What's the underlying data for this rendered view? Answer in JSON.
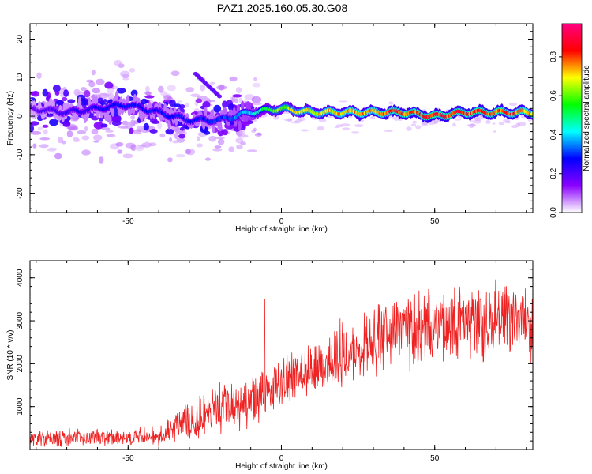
{
  "title": "PAZ1.2025.160.05.30.G08",
  "chart_data": [
    {
      "type": "heatmap",
      "xlabel": "Height of straight line (km)",
      "ylabel": "Frequency (Hz)",
      "xlim": [
        -82,
        82
      ],
      "ylim": [
        -25,
        24
      ],
      "xticks": [
        -50,
        0,
        50
      ],
      "yticks": [
        -20,
        -10,
        0,
        10,
        20
      ],
      "colorbar": {
        "label": "Normalized spectral amplitude",
        "range": [
          0,
          0.97
        ],
        "ticks": [
          "0.0",
          "0.2",
          "0.4",
          "0.6",
          "0.8"
        ],
        "tick_values": [
          0,
          0.2,
          0.4,
          0.6,
          0.8
        ],
        "colormap": [
          "#ffffff",
          "#8a00ff",
          "#0000ff",
          "#00ffff",
          "#00ff00",
          "#ffff00",
          "#ff0000",
          "#ff0080"
        ]
      },
      "ridge": {
        "description_points_x": [
          -82,
          -70,
          -60,
          -50,
          -40,
          -30,
          -20,
          -10,
          0,
          10,
          20,
          30,
          40,
          50,
          60,
          70,
          82
        ],
        "frequency_hz": [
          2,
          1,
          2,
          3,
          1,
          -1,
          -1,
          1,
          2,
          1,
          1,
          1,
          1,
          0,
          1,
          1,
          1
        ],
        "amplitude": [
          0.2,
          0.25,
          0.28,
          0.3,
          0.3,
          0.3,
          0.32,
          0.45,
          0.7,
          0.75,
          0.8,
          0.85,
          0.9,
          0.92,
          0.9,
          0.9,
          0.85
        ]
      }
    },
    {
      "type": "line",
      "xlabel": "Height of straight line (km)",
      "ylabel": "SNR (10 * v/v)",
      "xlim": [
        -82,
        82
      ],
      "ylim": [
        0,
        4400
      ],
      "xticks": [
        -50,
        0,
        50
      ],
      "yticks": [
        1000,
        2000,
        3000,
        4000
      ],
      "color": "#ee2222",
      "trend_x": [
        -82,
        -60,
        -40,
        -30,
        -20,
        -10,
        -5,
        0,
        10,
        20,
        30,
        40,
        50,
        60,
        70,
        82
      ],
      "trend_mean": [
        250,
        280,
        330,
        700,
        950,
        1050,
        1350,
        1650,
        1850,
        2250,
        2550,
        2750,
        2850,
        2950,
        3000,
        3000
      ],
      "trend_spread": [
        200,
        220,
        250,
        500,
        650,
        650,
        600,
        550,
        650,
        800,
        850,
        900,
        950,
        950,
        950,
        950
      ]
    }
  ]
}
